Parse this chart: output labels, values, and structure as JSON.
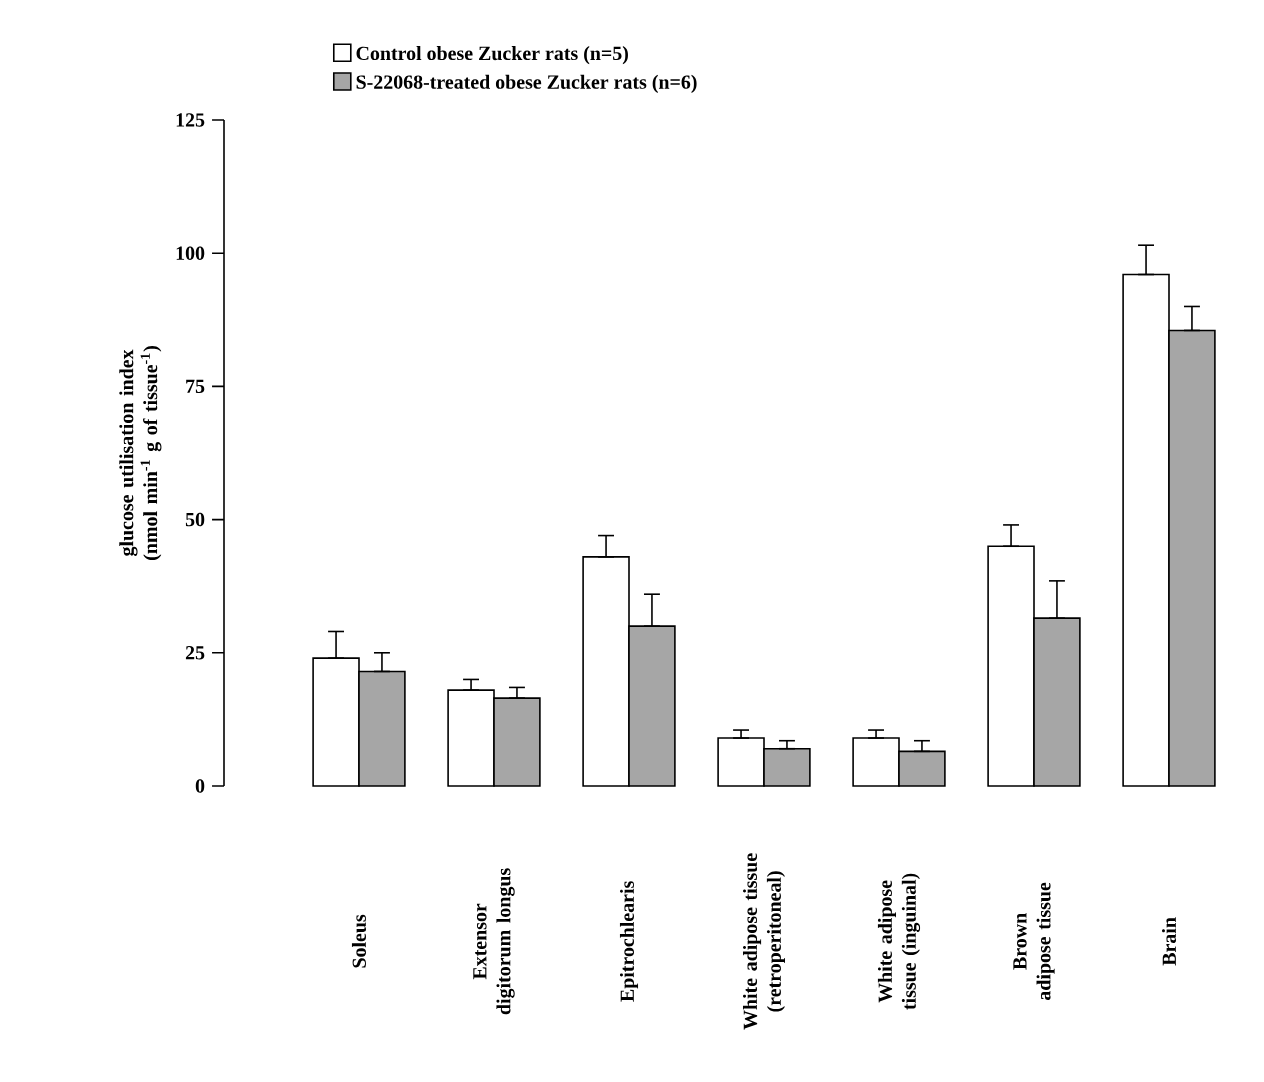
{
  "chart_data": {
    "type": "bar",
    "ylabel": "glucose utilisation index (nmol min$^{-1}$ g of tissue$^{-1}$)",
    "categories": [
      "Soleus",
      "Extensor digitorum longus",
      "Epitrochlearis",
      "White adipose tissue (retroperitoneal)",
      "White adipose tissue (inguinal)",
      "Brown adipose tissue",
      "Brain"
    ],
    "series": [
      {
        "name": "Control obese Zucker rats (n=5)",
        "color": "#ffffff",
        "values": [
          24,
          18,
          43,
          9,
          9,
          45,
          96
        ],
        "errors": [
          [
            24,
            29
          ],
          [
            18,
            20
          ],
          [
            43,
            47
          ],
          [
            9,
            10.5
          ],
          [
            9,
            10.5
          ],
          [
            45,
            49
          ],
          [
            96,
            101.5
          ]
        ]
      },
      {
        "name": "S-22068-treated obese Zucker rats (n=6)",
        "color": "#a6a6a6",
        "values": [
          21.5,
          16.5,
          30,
          7,
          6.5,
          31.5,
          85.5
        ],
        "errors": [
          [
            21.5,
            25
          ],
          [
            16.5,
            18.5
          ],
          [
            30,
            36
          ],
          [
            7,
            8.5
          ],
          [
            6.5,
            8.5
          ],
          [
            31.5,
            38.5
          ],
          [
            85.5,
            90
          ]
        ]
      }
    ],
    "ylim": [
      0,
      125
    ],
    "yticks": [
      0,
      25,
      50,
      75,
      100,
      125
    ],
    "grid": false,
    "legend": "top left"
  }
}
